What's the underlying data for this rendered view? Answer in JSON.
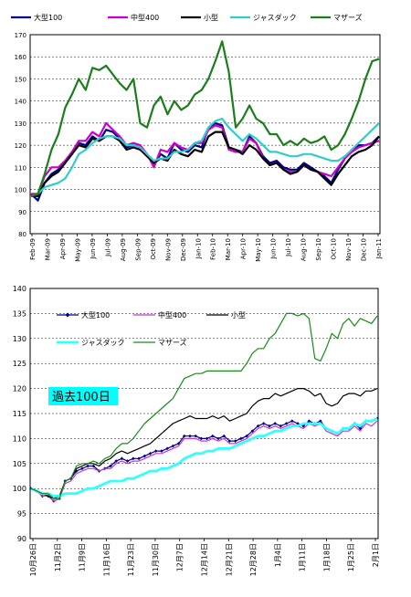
{
  "chart_data": [
    {
      "type": "line",
      "xlabel": "",
      "ylabel": "",
      "ylim": [
        80,
        170
      ],
      "yticks": [
        80,
        90,
        100,
        110,
        120,
        130,
        140,
        150,
        160,
        170
      ],
      "x_tick_labels": [
        "Feb-09",
        "Mar-09",
        "Apr-09",
        "May-09",
        "Jun-09",
        "Jul-09",
        "Aug-09",
        "Sep-09",
        "Oct-09",
        "Nov-09",
        "Dec-09",
        "Jan-10",
        "Feb-10",
        "Mar-10",
        "Apr-10",
        "May-10",
        "Jun-10",
        "Jul-10",
        "Aug-10",
        "Sep-10",
        "Oct-10",
        "Nov-10",
        "Dec-10",
        "Jan-11"
      ],
      "grid": true,
      "legend_position": "top",
      "series": [
        {
          "name": "大型100",
          "color": "#00008b",
          "values": [
            98,
            95,
            103,
            107,
            109,
            113,
            116,
            121,
            120,
            124,
            122,
            127,
            126,
            123,
            119,
            120,
            119,
            116,
            111,
            116,
            114,
            121,
            118,
            117,
            120,
            119,
            128,
            130,
            129,
            119,
            118,
            117,
            124,
            121,
            115,
            112,
            113,
            110,
            109,
            109,
            112,
            110,
            108,
            106,
            103,
            109,
            114,
            118,
            120,
            120,
            121,
            124
          ]
        },
        {
          "name": "中型400",
          "color": "#cc00cc",
          "values": [
            98,
            98,
            106,
            110,
            110,
            113,
            117,
            122,
            122,
            126,
            124,
            130,
            127,
            124,
            120,
            121,
            120,
            116,
            110,
            118,
            117,
            121,
            119,
            118,
            121,
            121,
            127,
            129,
            128,
            118,
            117,
            117,
            123,
            121,
            114,
            111,
            112,
            109,
            108,
            108,
            111,
            109,
            108,
            107,
            106,
            110,
            114,
            117,
            119,
            120,
            121,
            122
          ]
        },
        {
          "name": "小型",
          "color": "#000000",
          "values": [
            97,
            97,
            103,
            106,
            108,
            112,
            116,
            120,
            119,
            123,
            122,
            124,
            124,
            122,
            118,
            119,
            118,
            115,
            112,
            114,
            113,
            118,
            116,
            115,
            118,
            117,
            124,
            126,
            126,
            119,
            118,
            116,
            120,
            118,
            114,
            111,
            112,
            109,
            107,
            108,
            111,
            109,
            108,
            105,
            102,
            107,
            111,
            115,
            117,
            118,
            120,
            124
          ]
        },
        {
          "name": "ジャスダック",
          "color": "#33cccc",
          "values": [
            97,
            98,
            101,
            102,
            103,
            105,
            110,
            116,
            118,
            121,
            123,
            124,
            124,
            123,
            120,
            120,
            119,
            116,
            113,
            114,
            114,
            117,
            117,
            118,
            121,
            122,
            128,
            131,
            132,
            128,
            125,
            122,
            125,
            123,
            120,
            117,
            117,
            116,
            115,
            115,
            116,
            116,
            115,
            114,
            113,
            113,
            115,
            118,
            121,
            124,
            127,
            130
          ]
        },
        {
          "name": "マザーズ",
          "color": "#1a7f1a",
          "values": [
            97,
            98,
            107,
            118,
            125,
            137,
            143,
            150,
            145,
            155,
            154,
            156,
            152,
            148,
            145,
            150,
            130,
            128,
            138,
            142,
            134,
            140,
            136,
            138,
            143,
            145,
            150,
            158,
            167,
            153,
            128,
            132,
            138,
            132,
            130,
            125,
            125,
            120,
            122,
            120,
            123,
            121,
            122,
            124,
            118,
            120,
            125,
            132,
            140,
            150,
            158,
            159
          ]
        }
      ]
    },
    {
      "type": "line",
      "xlabel": "",
      "ylabel": "",
      "ylim": [
        90,
        140
      ],
      "yticks": [
        90,
        95,
        100,
        105,
        110,
        115,
        120,
        125,
        130,
        135,
        140
      ],
      "x_tick_labels": [
        "10月26日",
        "11月2日",
        "11月9日",
        "11月16日",
        "11月23日",
        "11月30日",
        "12月7日",
        "12月14日",
        "12月21日",
        "12月28日",
        "1月4日",
        "1月11日",
        "1月18日",
        "1月25日",
        "2月1日"
      ],
      "annotation": "過去100日",
      "grid": true,
      "legend_position": "top",
      "series": [
        {
          "name": "大型100",
          "color": "#00008b",
          "marker": "diamond",
          "values": [
            100,
            99.5,
            98.5,
            98.5,
            97.5,
            98,
            101.5,
            102,
            103.5,
            104,
            104.5,
            104.5,
            103.5,
            104,
            104.5,
            105.5,
            106,
            105.5,
            106,
            106,
            106.5,
            107,
            107.5,
            107.5,
            108,
            108.5,
            109,
            110.5,
            110.5,
            110.5,
            110,
            110,
            110.5,
            110,
            110.5,
            109.5,
            109.5,
            110,
            110.5,
            111.5,
            112.5,
            113,
            112.5,
            113,
            112.5,
            113,
            113.5,
            113,
            112.5,
            113.5,
            113,
            113.5,
            112,
            111.5,
            111,
            112,
            112,
            113,
            112,
            113.5,
            113.5,
            114
          ]
        },
        {
          "name": "中型400",
          "color": "#cc33cc",
          "values": [
            100,
            99.5,
            98.5,
            98.5,
            97.5,
            98,
            101,
            101.5,
            103,
            103.5,
            104,
            104,
            103.5,
            104,
            104,
            105,
            105.5,
            105,
            105.5,
            105.5,
            106,
            106.5,
            107,
            107,
            107.5,
            108,
            108.5,
            110,
            110,
            110,
            109.5,
            109.5,
            110,
            109.5,
            110,
            109,
            109,
            109.5,
            110,
            111,
            112,
            112.5,
            112,
            112.5,
            112,
            112.5,
            113,
            112.5,
            112,
            113,
            112.5,
            113,
            111.5,
            111,
            110.5,
            111.5,
            111.5,
            112.5,
            111.5,
            113,
            112.5,
            113.5
          ]
        },
        {
          "name": "小型",
          "color": "#000000",
          "values": [
            100,
            99.5,
            99,
            98.5,
            98,
            98.5,
            101.5,
            102,
            104,
            104.5,
            105,
            105,
            104.5,
            105.5,
            106,
            107,
            107.5,
            107,
            107.5,
            108,
            108.5,
            109,
            110,
            111,
            112,
            113,
            113.5,
            114,
            114.5,
            114,
            114,
            114,
            114.5,
            114,
            114.5,
            113.5,
            114,
            114.5,
            115,
            116.5,
            117.5,
            118,
            118,
            119,
            118.5,
            119,
            119.5,
            120,
            120,
            119.5,
            118.5,
            119,
            117,
            116.5,
            117,
            118.5,
            119,
            119,
            118.5,
            119.5,
            119.5,
            120
          ]
        },
        {
          "name": "ジャスダック",
          "color": "#33ffff",
          "values": [
            100,
            99.5,
            99,
            99,
            98.5,
            98.5,
            99,
            99,
            99,
            99.5,
            100,
            100,
            100.5,
            101,
            101.5,
            101.5,
            101.5,
            102,
            102,
            102.5,
            103,
            103.5,
            103.5,
            104,
            104,
            104.5,
            105,
            106,
            106.5,
            107,
            107,
            107.5,
            107.5,
            108,
            108,
            108,
            108.5,
            109,
            109.5,
            110,
            110.5,
            110.5,
            111,
            111.5,
            111.5,
            112,
            112.5,
            112.5,
            113,
            113,
            113,
            113,
            112,
            111.5,
            111,
            112,
            112,
            113,
            112.5,
            113.5,
            113.5,
            114
          ]
        },
        {
          "name": "マザーズ",
          "color": "#1a8c1a",
          "values": [
            100,
            99.5,
            99,
            99,
            98,
            98,
            101.5,
            102,
            104.5,
            105,
            105,
            105.5,
            105,
            106,
            106.5,
            108,
            109,
            109,
            110,
            111.5,
            113,
            114,
            115,
            116,
            117,
            118,
            120,
            122,
            122.5,
            123,
            123,
            123.5,
            123.5,
            123.5,
            123.5,
            123.5,
            123.5,
            123.5,
            125,
            127,
            128,
            128,
            130,
            131,
            133,
            135,
            135,
            134.5,
            135,
            134,
            126,
            125.5,
            128,
            131,
            130,
            133,
            134,
            132.5,
            134,
            133.5,
            133,
            134.5
          ]
        }
      ]
    }
  ]
}
